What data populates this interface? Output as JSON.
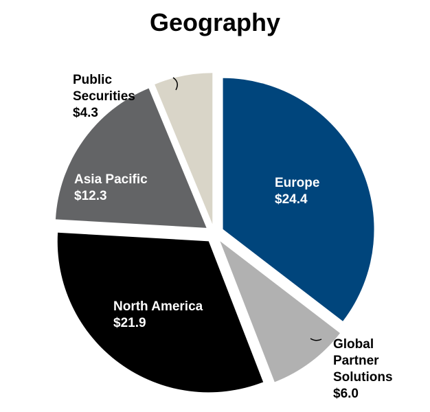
{
  "chart_data": {
    "type": "pie",
    "title": "Geography",
    "exploded": true,
    "start": "top",
    "direction": "clockwise",
    "slices": [
      {
        "label": [
          "Europe"
        ],
        "value": 24.4,
        "value_label": "$24.4",
        "color": "#00457c",
        "text_color": "#ffffff"
      },
      {
        "label": [
          "Global",
          "Partner",
          "Solutions"
        ],
        "value": 6.0,
        "value_label": "$6.0",
        "color": "#b1b1b1",
        "text_color": "#000000"
      },
      {
        "label": [
          "North America"
        ],
        "value": 21.9,
        "value_label": "$21.9",
        "color": "#000000",
        "text_color": "#ffffff"
      },
      {
        "label": [
          "Asia Pacific"
        ],
        "value": 12.3,
        "value_label": "$12.3",
        "color": "#636466",
        "text_color": "#ffffff"
      },
      {
        "label": [
          "Public",
          "Securities"
        ],
        "value": 4.3,
        "value_label": "$4.3",
        "color": "#d9d5c8",
        "text_color": "#000000"
      }
    ]
  }
}
